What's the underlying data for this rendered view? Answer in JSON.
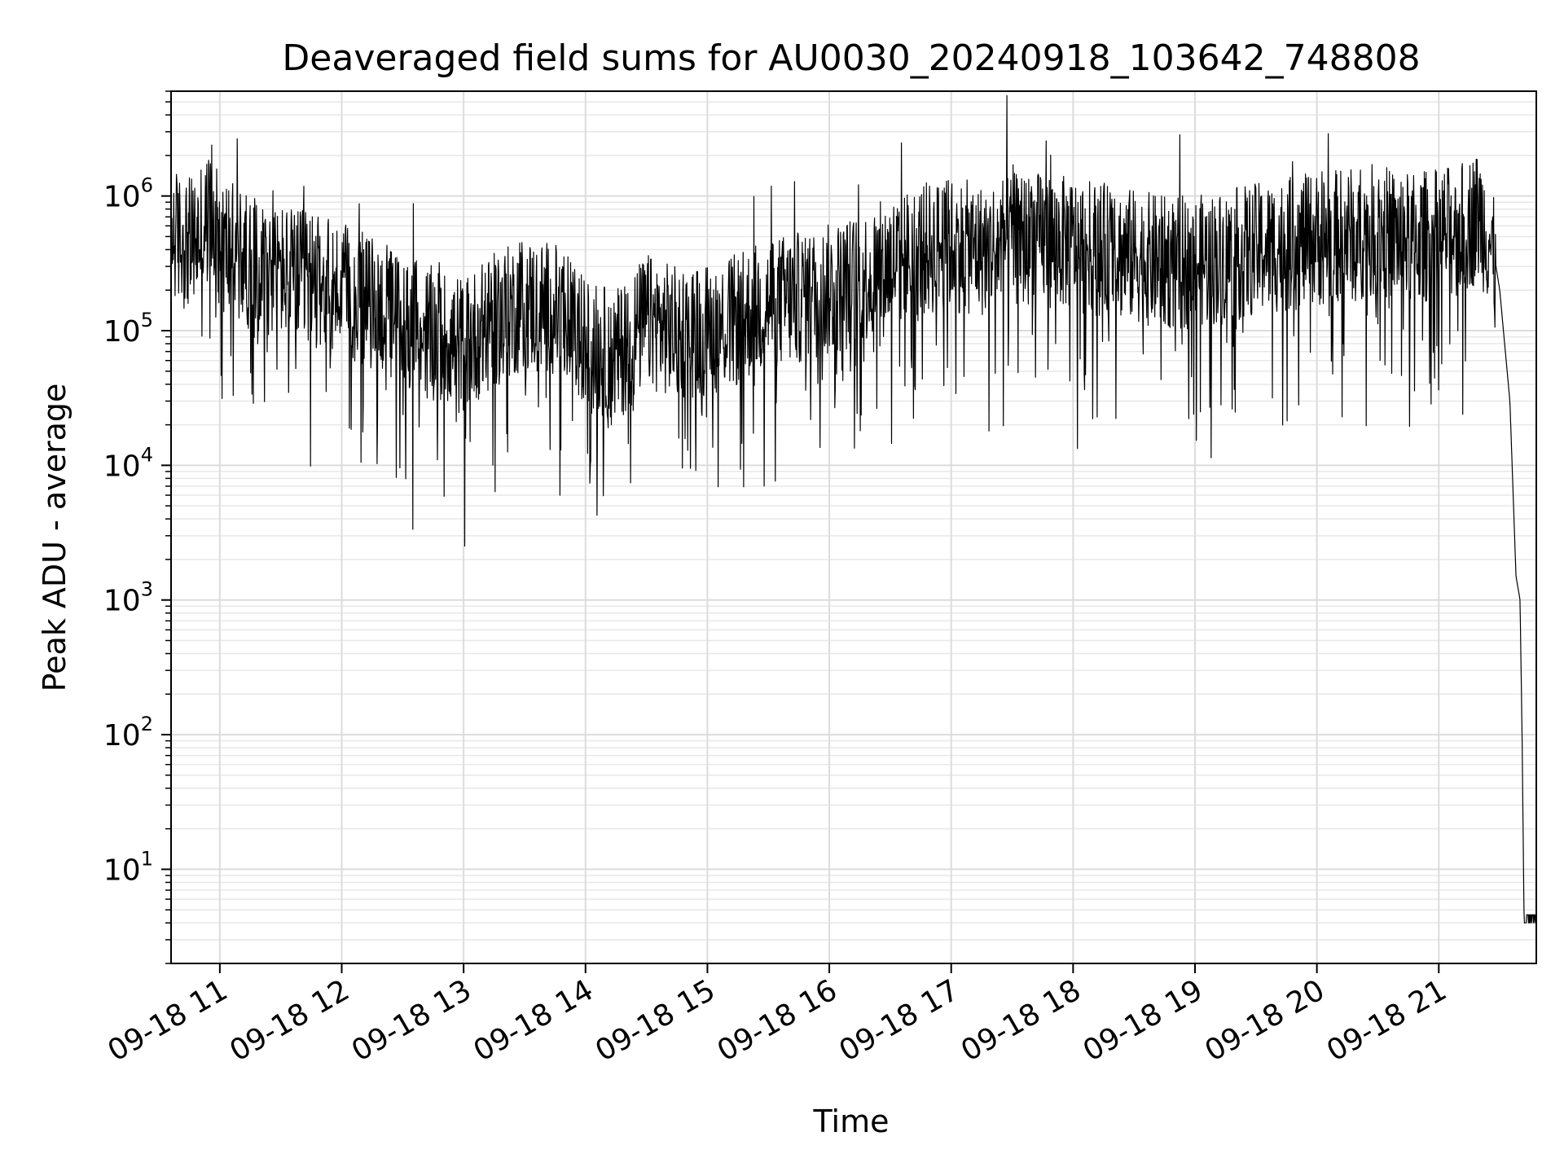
{
  "chart_data": {
    "type": "line",
    "title": "Deaveraged field sums for AU0030_20240918_103642_748808",
    "xlabel": "Time",
    "ylabel": "Peak ADU - average",
    "yscale": "log",
    "ylim": [
      2,
      6000000
    ],
    "xlim": [
      "09-18 10:36",
      "09-18 21:48"
    ],
    "grid": true,
    "x_ticks": [
      "09-18 11",
      "09-18 12",
      "09-18 13",
      "09-18 14",
      "09-18 15",
      "09-18 16",
      "09-18 17",
      "09-18 18",
      "09-18 19",
      "09-18 20",
      "09-18 21"
    ],
    "y_ticks": [
      {
        "base": "10",
        "exp": "1",
        "value": 10
      },
      {
        "base": "10",
        "exp": "2",
        "value": 100
      },
      {
        "base": "10",
        "exp": "3",
        "value": 1000
      },
      {
        "base": "10",
        "exp": "4",
        "value": 10000
      },
      {
        "base": "10",
        "exp": "5",
        "value": 100000
      },
      {
        "base": "10",
        "exp": "6",
        "value": 1000000
      }
    ],
    "series": [
      {
        "color": "#000000",
        "x": [
          "09-18 10:36",
          "09-18 10:40",
          "09-18 10:46",
          "09-18 10:51",
          "09-18 10:55",
          "09-18 11:00",
          "09-18 11:15",
          "09-18 11:30",
          "09-18 11:45",
          "09-18 12:00",
          "09-18 12:15",
          "09-18 12:30",
          "09-18 12:45",
          "09-18 13:00",
          "09-18 13:15",
          "09-18 13:30",
          "09-18 13:45",
          "09-18 14:00",
          "09-18 14:15",
          "09-18 14:30",
          "09-18 14:45",
          "09-18 15:00",
          "09-18 15:15",
          "09-18 15:30",
          "09-18 15:45",
          "09-18 16:00",
          "09-18 16:15",
          "09-18 16:30",
          "09-18 16:45",
          "09-18 17:00",
          "09-18 17:15",
          "09-18 17:30",
          "09-18 17:45",
          "09-18 18:00",
          "09-18 18:15",
          "09-18 18:30",
          "09-18 18:45",
          "09-18 19:00",
          "09-18 19:15",
          "09-18 19:30",
          "09-18 19:45",
          "09-18 20:00",
          "09-18 20:15",
          "09-18 20:30",
          "09-18 20:45",
          "09-18 21:00",
          "09-18 21:10",
          "09-18 21:15",
          "09-18 21:20",
          "09-18 21:25",
          "09-18 21:30",
          "09-18 21:35",
          "09-18 21:38",
          "09-18 21:40",
          "09-18 21:41",
          "09-18 21:42",
          "09-18 21:48"
        ],
        "y": [
          700000,
          600000,
          550000,
          650000,
          900000,
          600000,
          400000,
          350000,
          300000,
          250000,
          200000,
          150000,
          120000,
          100000,
          150000,
          200000,
          180000,
          100000,
          80000,
          150000,
          120000,
          130000,
          150000,
          200000,
          220000,
          250000,
          300000,
          400000,
          500000,
          550000,
          500000,
          600000,
          600000,
          550000,
          500000,
          450000,
          400000,
          400000,
          450000,
          500000,
          550000,
          600000,
          650000,
          700000,
          600000,
          650000,
          700000,
          800000,
          900000,
          600000,
          200000,
          30000,
          1500,
          1000,
          100,
          4,
          4
        ]
      }
    ]
  }
}
